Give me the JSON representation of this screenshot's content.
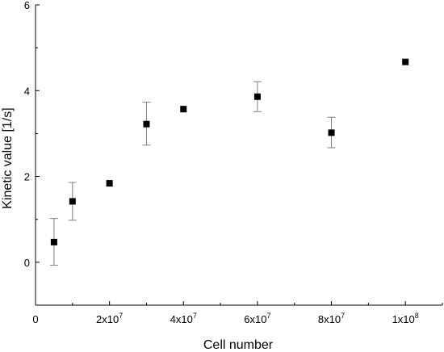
{
  "chart_data": {
    "type": "scatter",
    "title": "",
    "xlabel": "Cell number",
    "ylabel": "Kinetic value [1/s]",
    "xlim": [
      0,
      110000000
    ],
    "ylim": [
      -1,
      6
    ],
    "grid": false,
    "x_ticks": [
      {
        "value": 0,
        "mantissa": "0",
        "exponent": ""
      },
      {
        "value": 20000000,
        "mantissa": "2x10",
        "exponent": "7"
      },
      {
        "value": 40000000,
        "mantissa": "4x10",
        "exponent": "7"
      },
      {
        "value": 60000000,
        "mantissa": "6x10",
        "exponent": "7"
      },
      {
        "value": 80000000,
        "mantissa": "8x10",
        "exponent": "7"
      },
      {
        "value": 100000000,
        "mantissa": "1x10",
        "exponent": "8"
      }
    ],
    "y_ticks": [
      {
        "value": 0,
        "label": "0"
      },
      {
        "value": 2,
        "label": "2"
      },
      {
        "value": 4,
        "label": "4"
      },
      {
        "value": 6,
        "label": "6"
      }
    ],
    "points": [
      {
        "x": 5000000,
        "y": 0.47,
        "err_low": -0.07,
        "err_high": 1.02
      },
      {
        "x": 10000000,
        "y": 1.42,
        "err_low": 0.98,
        "err_high": 1.86
      },
      {
        "x": 20000000,
        "y": 1.84
      },
      {
        "x": 30000000,
        "y": 3.22,
        "err_low": 2.73,
        "err_high": 3.73
      },
      {
        "x": 40000000,
        "y": 3.57
      },
      {
        "x": 60000000,
        "y": 3.86,
        "err_low": 3.51,
        "err_high": 4.21
      },
      {
        "x": 80000000,
        "y": 3.02,
        "err_low": 2.67,
        "err_high": 3.38
      },
      {
        "x": 100000000,
        "y": 4.67
      }
    ],
    "colors": {
      "marker": "#000000",
      "errorbar": "#808080",
      "axis": "#000000"
    }
  }
}
